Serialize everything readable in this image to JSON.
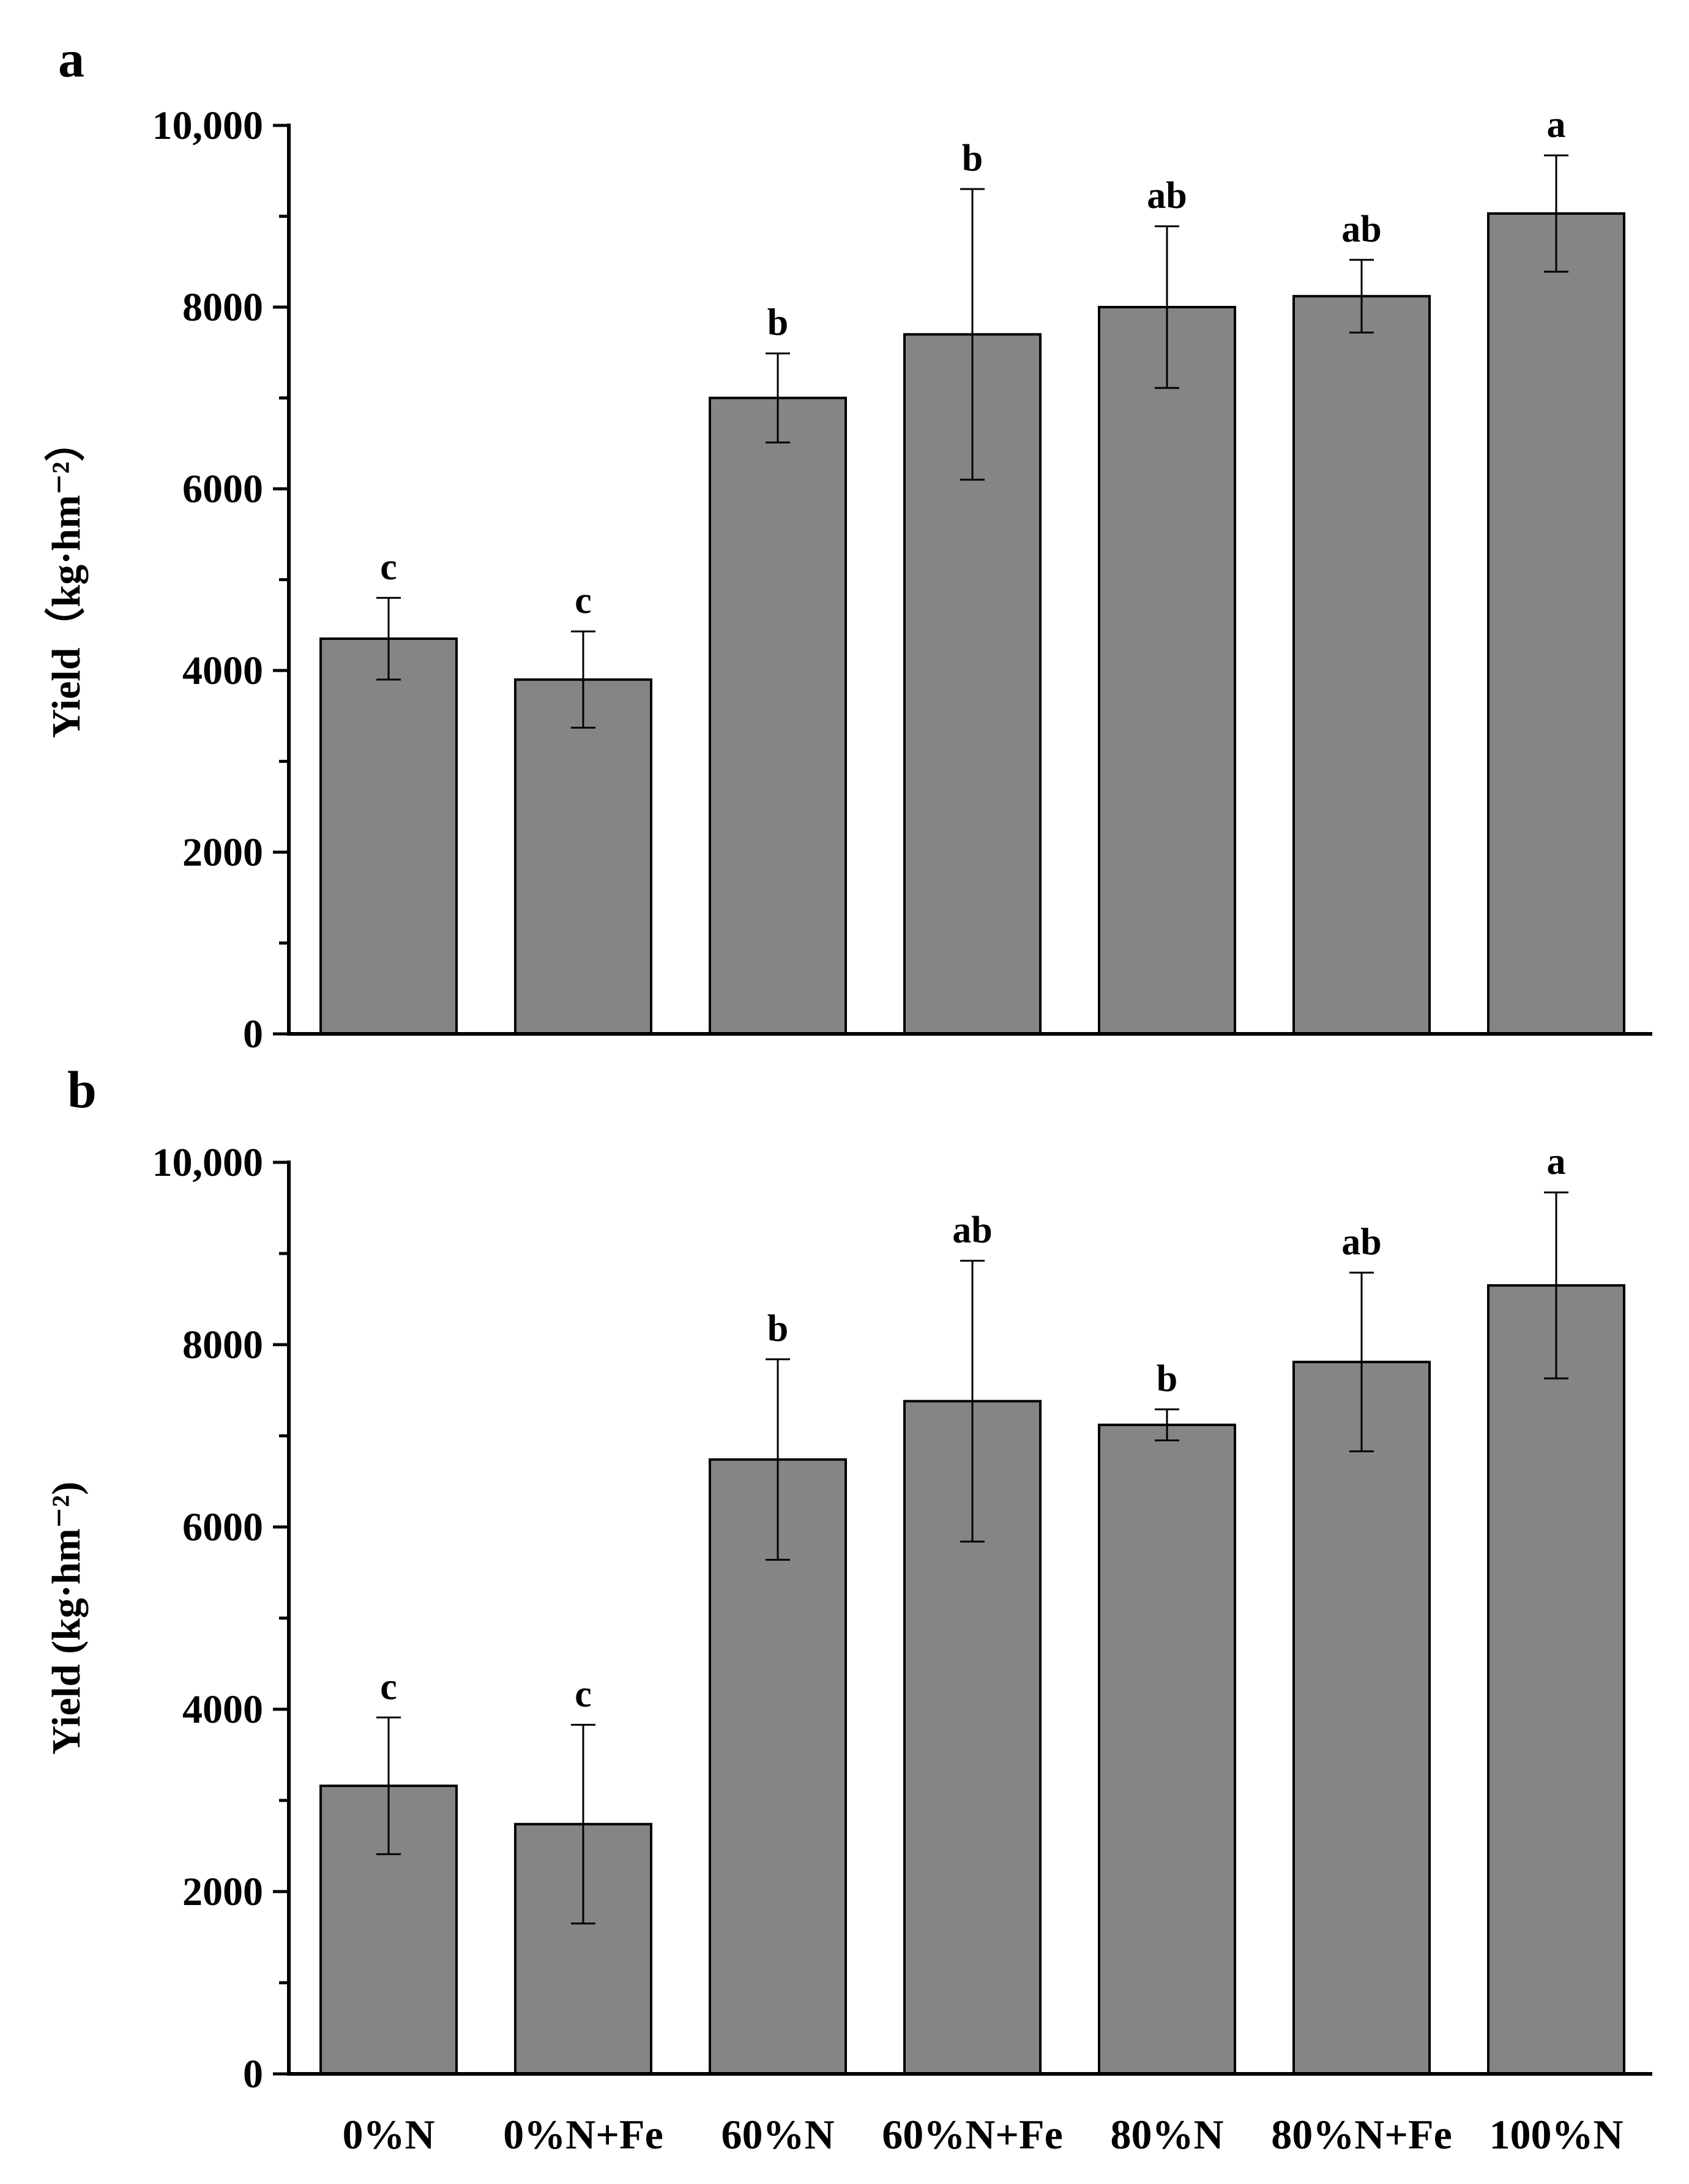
{
  "chart_data": [
    {
      "type": "bar",
      "panel": "a",
      "title": "",
      "xlabel": "",
      "ylabel": "Yield（kg·hm⁻²）",
      "ylim": [
        0,
        10000
      ],
      "yticks": [
        0,
        2000,
        4000,
        6000,
        8000,
        10000
      ],
      "ytick_labels": [
        "0",
        "2000",
        "4000",
        "6000",
        "8000",
        "10,000"
      ],
      "categories": [
        "0%N",
        "0%N+Fe",
        "60%N",
        "60%N+Fe",
        "80%N",
        "80%N+Fe",
        "100%N"
      ],
      "values": [
        4350,
        3900,
        7000,
        7700,
        8000,
        8120,
        9030
      ],
      "errors": [
        450,
        530,
        490,
        1600,
        890,
        400,
        640
      ],
      "significance": [
        "c",
        "c",
        "b",
        "b",
        "ab",
        "ab",
        "a"
      ],
      "show_category_labels": false
    },
    {
      "type": "bar",
      "panel": "b",
      "title": "",
      "xlabel": "",
      "ylabel": "Yield (kg·hm⁻²)",
      "ylim": [
        0,
        10000
      ],
      "yticks": [
        0,
        2000,
        4000,
        6000,
        8000,
        10000
      ],
      "ytick_labels": [
        "0",
        "2000",
        "4000",
        "6000",
        "8000",
        "10,000"
      ],
      "categories": [
        "0%N",
        "0%N+Fe",
        "60%N",
        "60%N+Fe",
        "80%N",
        "80%N+Fe",
        "100%N"
      ],
      "values": [
        3160,
        2740,
        6740,
        7380,
        7120,
        7810,
        8650
      ],
      "errors": [
        750,
        1090,
        1100,
        1540,
        170,
        980,
        1020
      ],
      "significance": [
        "c",
        "c",
        "b",
        "ab",
        "b",
        "ab",
        "a"
      ],
      "show_category_labels": true
    }
  ],
  "colors": {
    "bar_fill": "#858585",
    "axis": "#000000"
  }
}
